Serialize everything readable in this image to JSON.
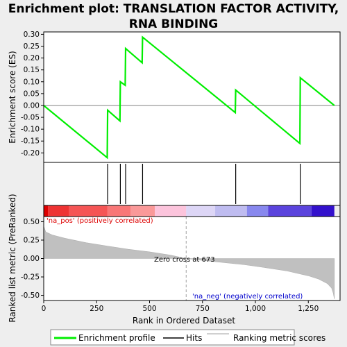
{
  "chart_data": {
    "type": "line",
    "title_lines": [
      "Enrichment plot: TRANSLATION FACTOR ACTIVITY,",
      "RNA BINDING"
    ],
    "xlabel": "Rank in Ordered Dataset",
    "xlim": [
      0,
      1400
    ],
    "x_ticks": [
      0,
      250,
      500,
      750,
      1000,
      1250
    ],
    "x_tick_labels": [
      "0",
      "250",
      "500",
      "750",
      "1,000",
      "1,250"
    ],
    "total_ranks": 1373,
    "es_panel": {
      "ylabel": "Enrichment score (ES)",
      "ylim": [
        -0.24,
        0.31
      ],
      "y_ticks": [
        -0.2,
        -0.15,
        -0.1,
        -0.05,
        0.0,
        0.05,
        0.1,
        0.15,
        0.2,
        0.25,
        0.3
      ],
      "y_tick_labels": [
        "-0.20",
        "-0.15",
        "-0.10",
        "-0.05",
        "0.00",
        "0.05",
        "0.10",
        "0.15",
        "0.20",
        "0.25",
        "0.30"
      ],
      "series_color": "#00ee00",
      "points": [
        [
          0,
          0.0
        ],
        [
          300,
          -0.22
        ],
        [
          302,
          -0.02
        ],
        [
          360,
          -0.065
        ],
        [
          362,
          0.1
        ],
        [
          385,
          0.085
        ],
        [
          387,
          0.24
        ],
        [
          465,
          0.18
        ],
        [
          467,
          0.288
        ],
        [
          905,
          -0.03
        ],
        [
          907,
          0.065
        ],
        [
          1210,
          -0.16
        ],
        [
          1212,
          0.117
        ],
        [
          1373,
          0.0
        ]
      ]
    },
    "hits": [
      302,
      362,
      387,
      467,
      907,
      1212
    ],
    "color_bar": [
      {
        "from": 0,
        "to": 20,
        "color": "#dd0000"
      },
      {
        "from": 20,
        "to": 120,
        "color": "#ee3333"
      },
      {
        "from": 120,
        "to": 300,
        "color": "#f55555"
      },
      {
        "from": 300,
        "to": 410,
        "color": "#f87777"
      },
      {
        "from": 410,
        "to": 525,
        "color": "#fa9999"
      },
      {
        "from": 525,
        "to": 673,
        "color": "#fcc4dc"
      },
      {
        "from": 673,
        "to": 810,
        "color": "#ddd6f6"
      },
      {
        "from": 810,
        "to": 960,
        "color": "#bfbcf0"
      },
      {
        "from": 960,
        "to": 1060,
        "color": "#8888ee"
      },
      {
        "from": 1060,
        "to": 1265,
        "color": "#5b44dd"
      },
      {
        "from": 1265,
        "to": 1373,
        "color": "#3311cc"
      }
    ],
    "metric_panel": {
      "ylabel": "Ranked list metric (PreRanked)",
      "ylim": [
        -0.57,
        0.57
      ],
      "y_ticks": [
        -0.5,
        -0.25,
        0.0,
        0.25,
        0.5
      ],
      "y_tick_labels": [
        "-0.50",
        "-0.25",
        "0.00",
        "0.25",
        "0.50"
      ],
      "fill_color": "#c0c0c0",
      "profile": [
        [
          0,
          0.44
        ],
        [
          10,
          0.36
        ],
        [
          40,
          0.32
        ],
        [
          100,
          0.275
        ],
        [
          200,
          0.215
        ],
        [
          300,
          0.17
        ],
        [
          400,
          0.125
        ],
        [
          500,
          0.09
        ],
        [
          600,
          0.045
        ],
        [
          673,
          0.0
        ],
        [
          750,
          -0.025
        ],
        [
          850,
          -0.055
        ],
        [
          950,
          -0.085
        ],
        [
          1050,
          -0.125
        ],
        [
          1150,
          -0.17
        ],
        [
          1250,
          -0.235
        ],
        [
          1300,
          -0.28
        ],
        [
          1340,
          -0.34
        ],
        [
          1360,
          -0.4
        ],
        [
          1368,
          -0.47
        ],
        [
          1373,
          -0.55
        ]
      ],
      "zero_cross_rank": 673,
      "zero_cross_label": "Zero cross at 673",
      "pos_label": "'na_pos' (positively correlated)",
      "neg_label": "'na_neg' (negatively correlated)",
      "pos_label_color": "#dd0000",
      "neg_label_color": "#0000cc"
    },
    "legend": {
      "placement": "bottom",
      "entries": [
        {
          "label": "Enrichment profile",
          "color": "#00ee00"
        },
        {
          "label": "Hits",
          "color": "#000000"
        },
        {
          "label": "Ranking metric scores",
          "color": "#c0c0c0"
        }
      ]
    }
  }
}
